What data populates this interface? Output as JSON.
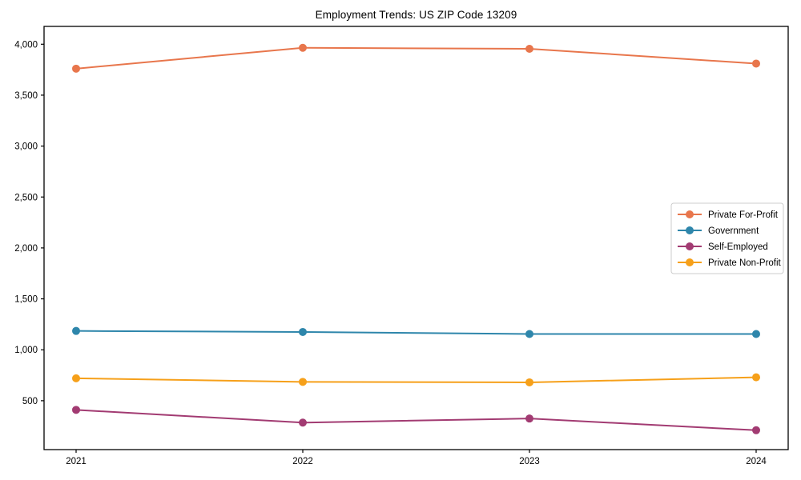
{
  "chart_data": {
    "type": "line",
    "title": "Employment Trends: US ZIP Code 13209",
    "xlabel": "",
    "ylabel": "",
    "x": [
      2021,
      2022,
      2023,
      2024
    ],
    "x_tick_labels": [
      "2021",
      "2022",
      "2023",
      "2024"
    ],
    "series": [
      {
        "name": "Private For-Profit",
        "color": "#E8764C",
        "values": [
          3760,
          3965,
          3955,
          3810
        ]
      },
      {
        "name": "Government",
        "color": "#2E86AB",
        "values": [
          1185,
          1175,
          1155,
          1155
        ]
      },
      {
        "name": "Self-Employed",
        "color": "#A23B72",
        "values": [
          410,
          285,
          325,
          210
        ]
      },
      {
        "name": "Private Non-Profit",
        "color": "#F6A01A",
        "values": [
          720,
          685,
          680,
          730
        ]
      }
    ],
    "ylim": [
      20,
      4175
    ],
    "yticks": [
      500,
      1000,
      1500,
      2000,
      2500,
      3000,
      3500,
      4000
    ],
    "ytick_labels": [
      "500",
      "1,000",
      "1,500",
      "2,000",
      "2,500",
      "3,000",
      "3,500",
      "4,000"
    ],
    "grid": false,
    "legend_position": "center right",
    "marker": "circle",
    "style": {
      "axis_color": "#000000",
      "background": "#ffffff",
      "legend_border": "#cccccc",
      "legend_background": "#ffffff",
      "line_width": 2,
      "marker_radius": 5
    }
  }
}
